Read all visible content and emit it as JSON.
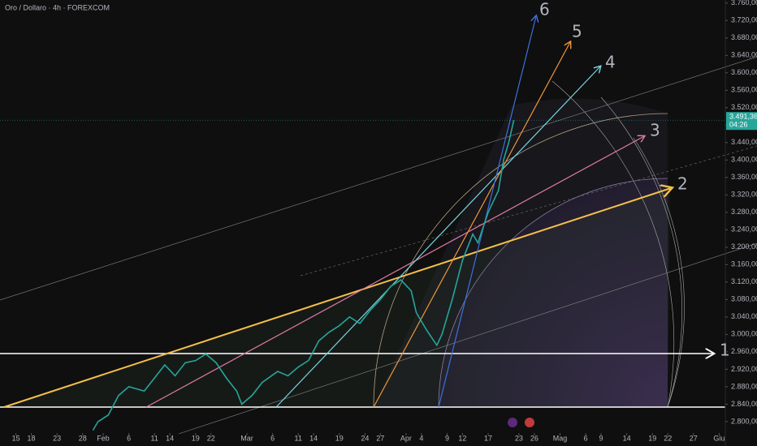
{
  "chart_data": {
    "type": "line",
    "title": "Oro / Dollaro · 4h · FOREXCOM",
    "x": [
      30,
      31,
      33,
      35,
      37,
      40,
      42,
      44,
      46,
      48,
      50,
      52,
      54,
      56,
      58,
      59,
      61,
      63,
      66,
      68,
      70,
      72,
      74,
      76,
      78,
      80,
      82,
      84,
      86,
      88,
      90,
      92,
      93,
      95,
      97,
      98,
      100,
      102,
      104,
      105,
      107,
      109,
      110,
      111,
      112
    ],
    "values": [
      2780,
      2800,
      2815,
      2860,
      2880,
      2870,
      2900,
      2930,
      2905,
      2935,
      2940,
      2955,
      2935,
      2900,
      2870,
      2840,
      2860,
      2890,
      2915,
      2905,
      2925,
      2940,
      2985,
      3005,
      3020,
      3040,
      3025,
      3055,
      3080,
      3110,
      3125,
      3100,
      3050,
      3010,
      2975,
      3000,
      3080,
      3170,
      3230,
      3210,
      3280,
      3330,
      3400,
      3440,
      3491.36
    ],
    "color": "#26a69a",
    "xlim": [
      11.9,
      153.2
    ],
    "ylim": [
      2744,
      3767
    ],
    "xticks": [
      {
        "value": 15,
        "label": "15"
      },
      {
        "value": 18,
        "label": "18"
      },
      {
        "value": 23,
        "label": "23"
      },
      {
        "value": 28,
        "label": "28"
      },
      {
        "value": 32,
        "label": "Feb"
      },
      {
        "value": 37,
        "label": "6"
      },
      {
        "value": 42,
        "label": "11"
      },
      {
        "value": 45,
        "label": "14"
      },
      {
        "value": 50,
        "label": "19"
      },
      {
        "value": 53,
        "label": "22"
      },
      {
        "value": 60,
        "label": "Mar"
      },
      {
        "value": 65,
        "label": "6"
      },
      {
        "value": 70,
        "label": "11"
      },
      {
        "value": 73,
        "label": "14"
      },
      {
        "value": 78,
        "label": "19"
      },
      {
        "value": 83,
        "label": "24"
      },
      {
        "value": 86,
        "label": "27"
      },
      {
        "value": 91,
        "label": "Apr"
      },
      {
        "value": 94,
        "label": "4"
      },
      {
        "value": 99,
        "label": "9"
      },
      {
        "value": 102,
        "label": "12"
      },
      {
        "value": 107,
        "label": "17"
      },
      {
        "value": 113,
        "label": "23"
      },
      {
        "value": 116,
        "label": "26"
      },
      {
        "value": 121,
        "label": "Mag"
      },
      {
        "value": 126,
        "label": "6"
      },
      {
        "value": 129,
        "label": "9"
      },
      {
        "value": 134,
        "label": "14"
      },
      {
        "value": 139,
        "label": "19"
      },
      {
        "value": 142,
        "label": "22"
      },
      {
        "value": 147,
        "label": "27"
      },
      {
        "value": 152,
        "label": "Giu"
      }
    ],
    "yticks": [
      {
        "value": 2800,
        "label": "2.800,00"
      },
      {
        "value": 2840,
        "label": "2.840,00"
      },
      {
        "value": 2880,
        "label": "2.880,00"
      },
      {
        "value": 2920,
        "label": "2.920,00"
      },
      {
        "value": 2960,
        "label": "2.960,00"
      },
      {
        "value": 3000,
        "label": "3.000,00"
      },
      {
        "value": 3040,
        "label": "3.040,00"
      },
      {
        "value": 3080,
        "label": "3.080,00"
      },
      {
        "value": 3120,
        "label": "3.120,00"
      },
      {
        "value": 3160,
        "label": "3.160,00"
      },
      {
        "value": 3200,
        "label": "3.200,00"
      },
      {
        "value": 3240,
        "label": "3.240,00"
      },
      {
        "value": 3280,
        "label": "3.280,00"
      },
      {
        "value": 3320,
        "label": "3.320,00"
      },
      {
        "value": 3360,
        "label": "3.360,00"
      },
      {
        "value": 3400,
        "label": "3.400,00"
      },
      {
        "value": 3440,
        "label": "3.440,00"
      },
      {
        "value": 3480,
        "label": "3.480,00"
      },
      {
        "value": 3520,
        "label": "3.520,00"
      },
      {
        "value": 3560,
        "label": "3.560,00"
      },
      {
        "value": 3600,
        "label": "3.600,00"
      },
      {
        "value": 3640,
        "label": "3.640,00"
      },
      {
        "value": 3680,
        "label": "3.680,00"
      },
      {
        "value": 3720,
        "label": "3.720,00"
      },
      {
        "value": 3760,
        "label": "3.760,00"
      }
    ],
    "last_price": {
      "value": 3491.36,
      "label": "3.491,36"
    },
    "countdown": "04:26",
    "annotations": [
      "1",
      "2",
      "3",
      "4",
      "5",
      "6"
    ]
  }
}
